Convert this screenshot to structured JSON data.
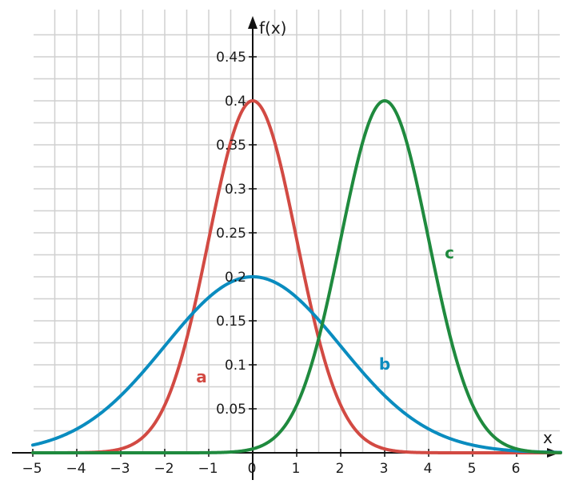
{
  "chart_data": {
    "type": "line",
    "title": "",
    "xlabel": "x",
    "ylabel": "f(x)",
    "xlim": [
      -5,
      6.9
    ],
    "ylim": [
      0,
      0.48
    ],
    "grid": true,
    "x_ticks": [
      "−5",
      "−4",
      "−3",
      "−2",
      "−1",
      "0",
      "1",
      "2",
      "3",
      "4",
      "5",
      "6"
    ],
    "y_ticks": [
      "0.05",
      "0.1",
      "0.15",
      "0.2",
      "0.25",
      "0.3",
      "0.35",
      "0.4",
      "0.45"
    ],
    "series": [
      {
        "name": "a",
        "color": "#d24a43",
        "distribution": "normal",
        "mean": 0,
        "sd": 1,
        "peak": 0.4
      },
      {
        "name": "b",
        "color": "#0a8cbf",
        "distribution": "normal",
        "mean": 0,
        "sd": 2,
        "peak": 0.2
      },
      {
        "name": "c",
        "color": "#1f8a3e",
        "distribution": "normal",
        "mean": 3,
        "sd": 1,
        "peak": 0.4
      }
    ]
  }
}
